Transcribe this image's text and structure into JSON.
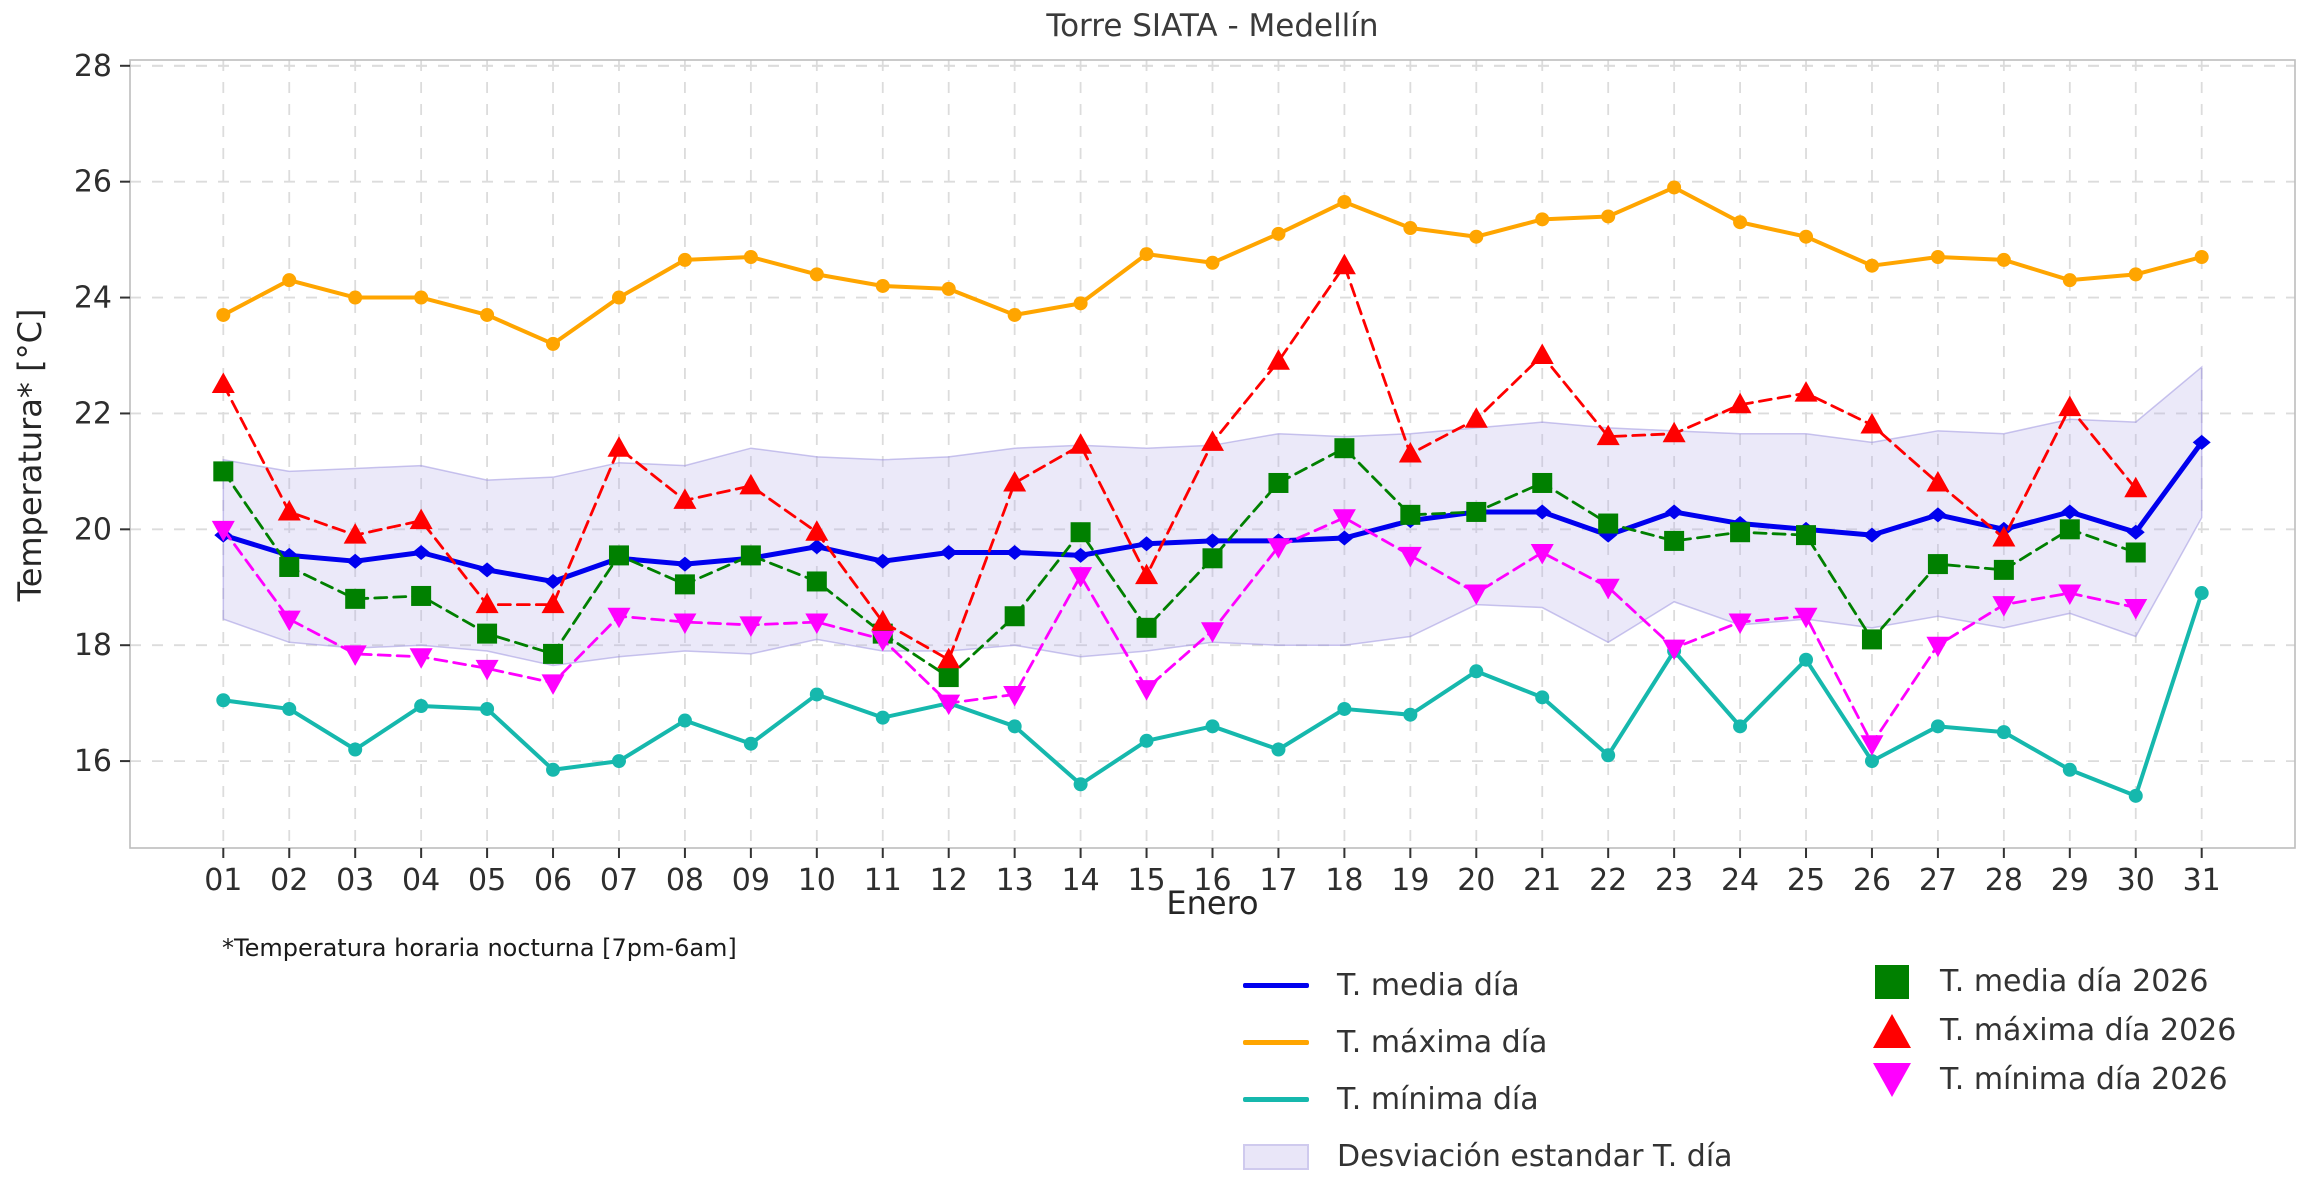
{
  "title": "Torre SIATA - Medellín",
  "footnote": "*Temperatura horaria nocturna [7pm-6am]",
  "chart_data": {
    "type": "line",
    "title": "Torre SIATA - Medellín",
    "xlabel": "Enero",
    "ylabel": "Temperatura* [°C]",
    "x_tick_labels": [
      "01",
      "02",
      "03",
      "04",
      "05",
      "06",
      "07",
      "08",
      "09",
      "10",
      "11",
      "12",
      "13",
      "14",
      "15",
      "16",
      "17",
      "18",
      "19",
      "20",
      "21",
      "22",
      "23",
      "24",
      "25",
      "26",
      "27",
      "28",
      "29",
      "30",
      "31"
    ],
    "y_ticks": [
      28,
      26,
      24,
      22,
      20,
      18,
      16
    ],
    "ylim": [
      14.5,
      28.1
    ],
    "grid": true,
    "legend_position": "bottom",
    "colors": {
      "media": "#0000ee",
      "maxima": "#ffa500",
      "minima": "#16b8ad",
      "band": "#b4aeea",
      "media2026": "#008000",
      "maxima2026": "#ff0000",
      "minima2026": "#ff00ff",
      "grid": "#dcdcdc",
      "spine": "#bdbdbd",
      "tick_label": "#2e2e2e"
    },
    "band": {
      "name": "Desviación estandar T. día",
      "upper": [
        21.2,
        21.0,
        21.05,
        21.1,
        20.85,
        20.9,
        21.15,
        21.1,
        21.4,
        21.25,
        21.2,
        21.25,
        21.4,
        21.45,
        21.4,
        21.45,
        21.65,
        21.6,
        21.65,
        21.75,
        21.85,
        21.75,
        21.7,
        21.65,
        21.65,
        21.5,
        21.7,
        21.65,
        21.9,
        21.85,
        22.8
      ],
      "lower": [
        18.45,
        18.05,
        17.95,
        18.0,
        17.9,
        17.65,
        17.8,
        17.9,
        17.85,
        18.1,
        17.9,
        17.9,
        18.0,
        17.8,
        17.9,
        18.05,
        18.0,
        18.0,
        18.15,
        18.7,
        18.65,
        18.05,
        18.75,
        18.35,
        18.45,
        18.3,
        18.5,
        18.3,
        18.55,
        18.15,
        20.2
      ]
    },
    "series": [
      {
        "name": "T. mínima día",
        "key": "minima",
        "marker": "circle",
        "style": "solid",
        "width": 4,
        "values": [
          17.05,
          16.9,
          16.2,
          16.95,
          16.9,
          15.85,
          16.0,
          16.7,
          16.3,
          17.15,
          16.75,
          17.0,
          16.6,
          15.6,
          16.35,
          16.6,
          16.2,
          16.9,
          16.8,
          17.55,
          17.1,
          16.1,
          17.9,
          16.6,
          17.75,
          16.0,
          16.6,
          16.5,
          15.85,
          15.4,
          18.9
        ]
      },
      {
        "name": "T. máxima día",
        "key": "maxima",
        "marker": "circle",
        "style": "solid",
        "width": 4,
        "values": [
          23.7,
          24.3,
          24.0,
          24.0,
          23.7,
          23.2,
          24.0,
          24.65,
          24.7,
          24.4,
          24.2,
          24.15,
          23.7,
          23.9,
          24.75,
          24.6,
          25.1,
          25.65,
          25.2,
          25.05,
          25.35,
          25.4,
          25.9,
          25.3,
          25.05,
          24.55,
          24.7,
          24.65,
          24.3,
          24.4,
          24.7
        ]
      },
      {
        "name": "T. media día",
        "key": "media",
        "marker": "diamond",
        "style": "solid",
        "width": 5,
        "values": [
          19.9,
          19.55,
          19.45,
          19.6,
          19.3,
          19.1,
          19.5,
          19.4,
          19.5,
          19.7,
          19.45,
          19.6,
          19.6,
          19.55,
          19.75,
          19.8,
          19.8,
          19.85,
          20.15,
          20.3,
          20.3,
          19.9,
          20.3,
          20.1,
          20.0,
          19.9,
          20.25,
          20.0,
          20.3,
          19.95,
          21.5
        ]
      },
      {
        "name": "T. media día 2026",
        "key": "media2026",
        "marker": "square",
        "style": "dashed",
        "width": 2.8,
        "values": [
          21.0,
          19.35,
          18.8,
          18.85,
          18.2,
          17.85,
          19.55,
          19.05,
          19.55,
          19.1,
          18.2,
          17.45,
          18.5,
          19.95,
          18.3,
          19.5,
          20.8,
          21.4,
          20.25,
          20.3,
          20.8,
          20.1,
          19.8,
          19.95,
          19.9,
          18.1,
          19.4,
          19.3,
          20.0,
          19.6,
          null
        ]
      },
      {
        "name": "T. máxima día 2026",
        "key": "maxima2026",
        "marker": "triangle-up",
        "style": "dashed",
        "width": 2.8,
        "values": [
          22.5,
          20.3,
          19.9,
          20.15,
          18.7,
          18.7,
          21.4,
          20.5,
          20.75,
          19.95,
          18.4,
          17.75,
          20.8,
          21.45,
          19.2,
          21.5,
          22.9,
          24.55,
          21.3,
          21.9,
          23.0,
          21.6,
          21.65,
          22.15,
          22.35,
          21.8,
          20.8,
          19.85,
          22.1,
          20.7,
          null
        ]
      },
      {
        "name": "T. mínima día 2026",
        "key": "minima2026",
        "marker": "triangle-down",
        "style": "dashed",
        "width": 2.8,
        "values": [
          20.0,
          18.45,
          17.85,
          17.8,
          17.6,
          17.35,
          18.5,
          18.4,
          18.35,
          18.4,
          18.1,
          17.0,
          17.15,
          19.2,
          17.25,
          18.25,
          19.7,
          20.2,
          19.55,
          18.9,
          19.6,
          19.0,
          17.95,
          18.4,
          18.5,
          16.3,
          18.0,
          18.7,
          18.9,
          18.65,
          null
        ]
      }
    ],
    "legend_left": [
      {
        "label": "T. media día",
        "swatch": "line",
        "key": "media"
      },
      {
        "label": "T. máxima día",
        "swatch": "line",
        "key": "maxima"
      },
      {
        "label": "T. mínima día",
        "swatch": "line",
        "key": "minima"
      },
      {
        "label": "Desviación estandar T. día",
        "swatch": "band",
        "key": "band"
      }
    ],
    "legend_right": [
      {
        "label": "T. media día 2026",
        "swatch": "square",
        "key": "media2026"
      },
      {
        "label": "T. máxima día 2026",
        "swatch": "triangle-up",
        "key": "maxima2026"
      },
      {
        "label": "T. mínima día 2026",
        "swatch": "triangle-down",
        "key": "minima2026"
      }
    ]
  }
}
